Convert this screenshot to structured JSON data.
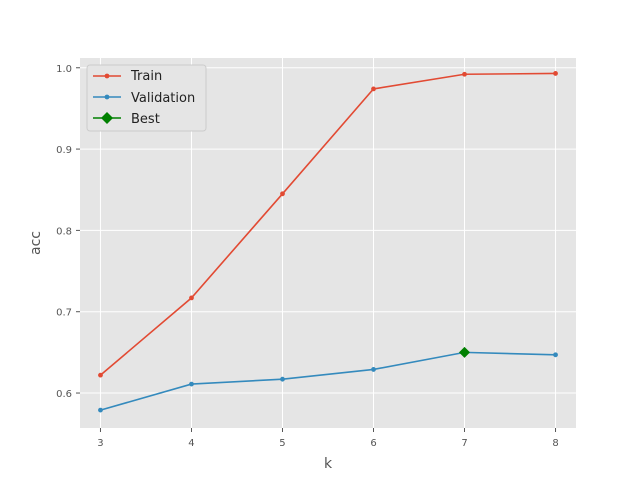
{
  "chart_data": {
    "type": "line",
    "title": "",
    "xlabel": "k",
    "ylabel": "acc",
    "x": [
      3,
      4,
      5,
      6,
      7,
      8
    ],
    "xlim": [
      2.775,
      8.225
    ],
    "ylim": [
      0.557,
      1.012
    ],
    "x_ticks": [
      "3",
      "4",
      "5",
      "6",
      "7",
      "8"
    ],
    "y_ticks": [
      "0.6",
      "0.7",
      "0.8",
      "0.9",
      "1.0"
    ],
    "grid": true,
    "legend_position": "top-left",
    "series": [
      {
        "name": "Train",
        "color": "#e24a33",
        "marker": "circle",
        "values": [
          0.622,
          0.717,
          0.845,
          0.974,
          0.992,
          0.993
        ]
      },
      {
        "name": "Validation",
        "color": "#348abd",
        "marker": "circle",
        "values": [
          0.579,
          0.611,
          0.617,
          0.629,
          0.65,
          0.647
        ]
      }
    ],
    "best": {
      "name": "Best",
      "color": "#008000",
      "marker": "diamond",
      "x": 7,
      "y": 0.65
    },
    "style": {
      "background": "#e5e5e5",
      "grid_color": "#ffffff"
    }
  }
}
